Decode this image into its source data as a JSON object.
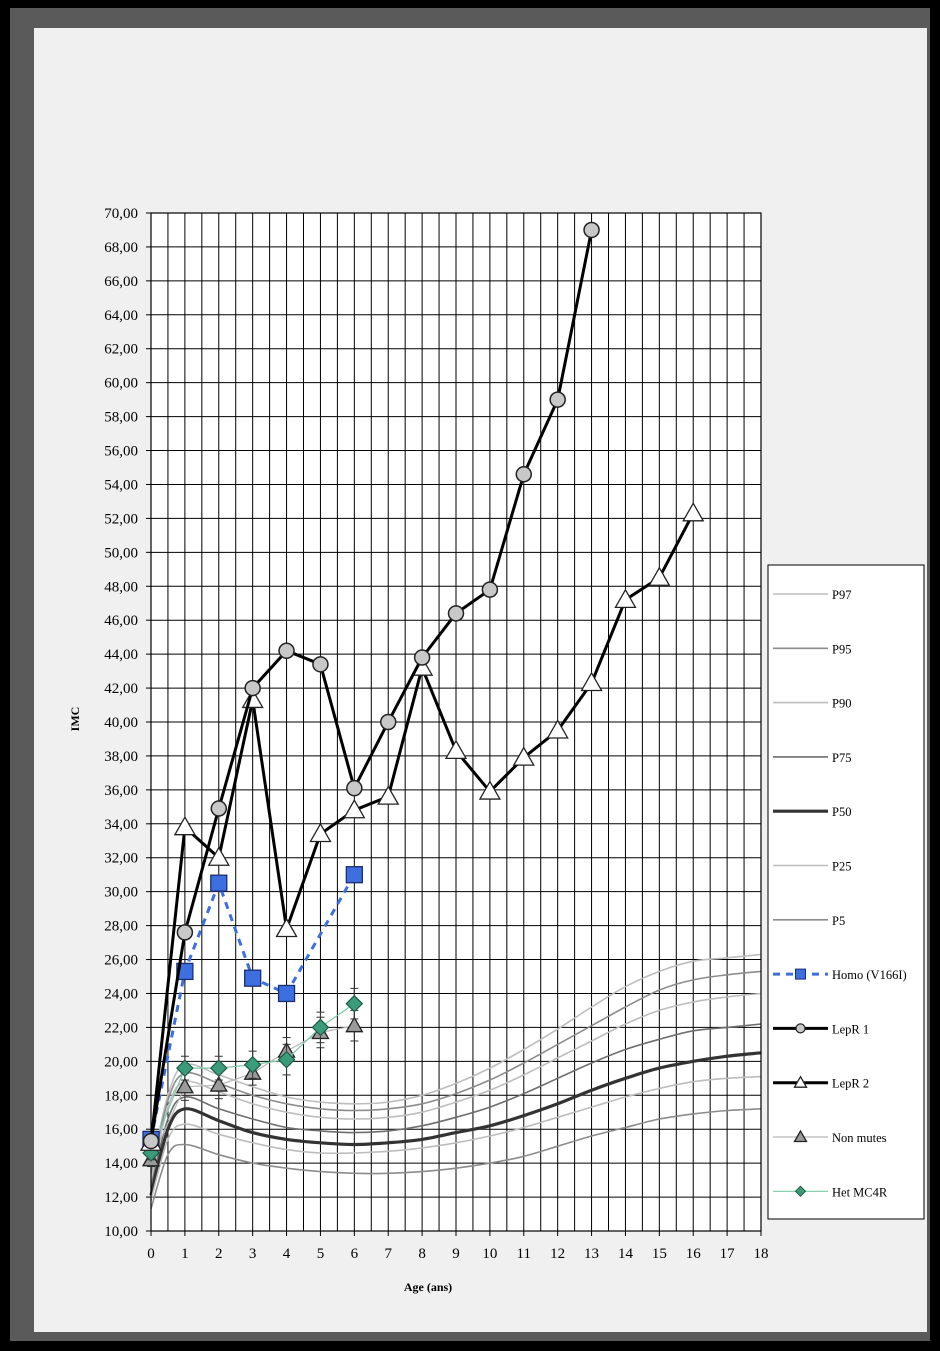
{
  "chart_data": {
    "type": "line",
    "title": "",
    "xlabel": "Age (ans)",
    "ylabel": "IMC",
    "xlim": [
      0,
      18
    ],
    "ylim": [
      10,
      70
    ],
    "x_ticks": [
      "0",
      "1",
      "2",
      "3",
      "4",
      "5",
      "6",
      "7",
      "8",
      "9",
      "10",
      "11",
      "12",
      "13",
      "14",
      "15",
      "16",
      "17",
      "18"
    ],
    "y_ticks": [
      "10,00",
      "12,00",
      "14,00",
      "16,00",
      "18,00",
      "20,00",
      "22,00",
      "24,00",
      "26,00",
      "28,00",
      "30,00",
      "32,00",
      "34,00",
      "36,00",
      "38,00",
      "40,00",
      "42,00",
      "44,00",
      "46,00",
      "48,00",
      "50,00",
      "52,00",
      "54,00",
      "56,00",
      "58,00",
      "60,00",
      "62,00",
      "64,00",
      "66,00",
      "68,00",
      "70,00"
    ],
    "grid": true,
    "legend_position": "right",
    "reference_curves": [
      {
        "name": "P97",
        "color": "#bdbdbd",
        "x": [
          0,
          0.5,
          1,
          2,
          3,
          4,
          5,
          6,
          7,
          8,
          9,
          10,
          11,
          12,
          13,
          14,
          15,
          16,
          17,
          18
        ],
        "y": [
          13.5,
          18.0,
          19.8,
          19.2,
          18.5,
          17.9,
          17.6,
          17.5,
          17.6,
          18.0,
          18.7,
          19.6,
          20.7,
          21.9,
          23.2,
          24.4,
          25.3,
          25.9,
          26.1,
          26.3
        ]
      },
      {
        "name": "P95",
        "color": "#8c8c8c",
        "x": [
          0,
          0.5,
          1,
          2,
          3,
          4,
          5,
          6,
          7,
          8,
          9,
          10,
          11,
          12,
          13,
          14,
          15,
          16,
          17,
          18
        ],
        "y": [
          13.3,
          17.7,
          19.3,
          18.7,
          18.0,
          17.5,
          17.2,
          17.1,
          17.2,
          17.5,
          18.1,
          18.9,
          19.9,
          21.0,
          22.1,
          23.2,
          24.2,
          24.8,
          25.1,
          25.3
        ]
      },
      {
        "name": "P90",
        "color": "#bdbdbd",
        "x": [
          0,
          0.5,
          1,
          2,
          3,
          4,
          5,
          6,
          7,
          8,
          9,
          10,
          11,
          12,
          13,
          14,
          15,
          16,
          17,
          18
        ],
        "y": [
          13.0,
          17.3,
          18.8,
          18.2,
          17.5,
          17.0,
          16.7,
          16.6,
          16.7,
          17.0,
          17.6,
          18.3,
          19.2,
          20.2,
          21.2,
          22.2,
          23.0,
          23.5,
          23.8,
          24.0
        ]
      },
      {
        "name": "P75",
        "color": "#6e6e6e",
        "x": [
          0,
          0.5,
          1,
          2,
          3,
          4,
          5,
          6,
          7,
          8,
          9,
          10,
          11,
          12,
          13,
          14,
          15,
          16,
          17,
          18
        ],
        "y": [
          12.6,
          16.6,
          17.9,
          17.2,
          16.6,
          16.1,
          15.9,
          15.8,
          15.9,
          16.2,
          16.7,
          17.3,
          18.1,
          19.0,
          19.9,
          20.7,
          21.3,
          21.8,
          22.0,
          22.2
        ]
      },
      {
        "name": "P50",
        "color": "#333333",
        "x": [
          0,
          0.5,
          1,
          2,
          3,
          4,
          5,
          6,
          7,
          8,
          9,
          10,
          11,
          12,
          13,
          14,
          15,
          16,
          17,
          18
        ],
        "y": [
          12.1,
          16.0,
          17.2,
          16.5,
          15.8,
          15.4,
          15.2,
          15.1,
          15.2,
          15.4,
          15.8,
          16.2,
          16.8,
          17.5,
          18.3,
          19.0,
          19.6,
          20.0,
          20.3,
          20.5
        ]
      },
      {
        "name": "P25",
        "color": "#bdbdbd",
        "x": [
          0,
          0.5,
          1,
          2,
          3,
          4,
          5,
          6,
          7,
          8,
          9,
          10,
          11,
          12,
          13,
          14,
          15,
          16,
          17,
          18
        ],
        "y": [
          11.8,
          15.4,
          16.3,
          15.7,
          15.2,
          14.8,
          14.6,
          14.6,
          14.7,
          14.9,
          15.2,
          15.6,
          16.1,
          16.7,
          17.3,
          17.9,
          18.4,
          18.8,
          19.0,
          19.1
        ]
      },
      {
        "name": "P5",
        "color": "#8c8c8c",
        "x": [
          0,
          0.5,
          1,
          2,
          3,
          4,
          5,
          6,
          7,
          8,
          9,
          10,
          11,
          12,
          13,
          14,
          15,
          16,
          17,
          18
        ],
        "y": [
          11.3,
          14.5,
          15.1,
          14.5,
          14.0,
          13.7,
          13.5,
          13.4,
          13.4,
          13.5,
          13.7,
          14.0,
          14.4,
          15.0,
          15.6,
          16.1,
          16.6,
          16.9,
          17.1,
          17.2
        ]
      }
    ],
    "series": [
      {
        "name": "Homo (V166I)",
        "marker": "square",
        "line": "dashed",
        "color": "#3d6fe0",
        "x": [
          0,
          1,
          2,
          3,
          4,
          6
        ],
        "y": [
          15.4,
          25.3,
          30.5,
          24.9,
          24.0,
          31.0
        ]
      },
      {
        "name": "LepR 1",
        "marker": "circle",
        "line": "solid",
        "color": "#000000",
        "x": [
          0,
          1,
          2,
          3,
          4,
          5,
          6,
          7,
          8,
          9,
          10,
          11,
          12,
          13
        ],
        "y": [
          15.3,
          27.6,
          34.9,
          42.0,
          44.2,
          43.4,
          36.1,
          40.0,
          43.8,
          46.4,
          47.8,
          54.6,
          59.0,
          69.0
        ]
      },
      {
        "name": "LepR 2",
        "marker": "triangle",
        "line": "solid",
        "color": "#000000",
        "x": [
          0,
          1,
          2,
          3,
          4,
          5,
          6,
          7,
          8,
          9,
          10,
          11,
          12,
          13,
          14,
          15,
          16
        ],
        "y": [
          15.2,
          33.8,
          32.0,
          41.3,
          27.8,
          33.4,
          34.8,
          35.6,
          43.2,
          38.3,
          35.9,
          37.9,
          39.5,
          42.3,
          47.2,
          48.5,
          52.3
        ]
      },
      {
        "name": "Non mutes",
        "marker": "triangle",
        "line": "solid",
        "color": "#c0c0c0",
        "x": [
          0,
          1,
          2,
          3,
          4,
          5,
          6
        ],
        "y": [
          14.2,
          18.5,
          18.6,
          19.3,
          20.6,
          21.7,
          22.1
        ],
        "err": [
          0.4,
          0.8,
          0.8,
          0.7,
          0.8,
          0.9,
          0.9
        ]
      },
      {
        "name": "Het MC4R",
        "marker": "diamond",
        "line": "solid",
        "color": "#3a9c7a",
        "x": [
          0,
          1,
          2,
          3,
          4,
          5,
          6
        ],
        "y": [
          14.6,
          19.6,
          19.6,
          19.8,
          20.1,
          22.0,
          23.4
        ],
        "err": [
          0.4,
          0.7,
          0.7,
          0.8,
          0.9,
          0.9,
          0.9
        ]
      }
    ],
    "legend": [
      "P97",
      "P95",
      "P90",
      "P75",
      "P50",
      "P25",
      "P5",
      "Homo (V166I)",
      "LepR 1",
      "LepR 2",
      "Non mutes",
      "Het MC4R"
    ]
  }
}
